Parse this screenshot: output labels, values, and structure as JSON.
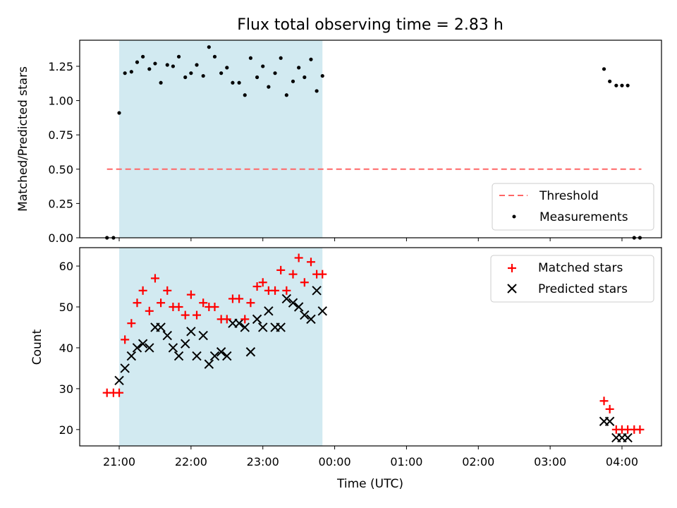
{
  "figure": {
    "title": "Flux total observing time = 2.83 h"
  },
  "chart_data": [
    {
      "type": "scatter",
      "panel": "top",
      "ylabel": "Matched/Predicted stars",
      "xlabel": "",
      "xlim": [
        -0.55,
        7.55
      ],
      "ylim": [
        0.0,
        1.44
      ],
      "yticks": [
        0.0,
        0.25,
        0.5,
        0.75,
        1.0,
        1.25
      ],
      "ytick_labels": [
        "0.00",
        "0.25",
        "0.50",
        "0.75",
        "1.00",
        "1.25"
      ],
      "shaded_region": {
        "x": [
          0.0,
          2.83
        ],
        "color": "#add8e6"
      },
      "threshold": {
        "name": "Threshold",
        "y": 0.5,
        "x": [
          -0.17,
          7.27
        ],
        "color": "#ff6666",
        "style": "dashed"
      },
      "legend": {
        "placement": "lower right",
        "entries": [
          "Threshold",
          "Measurements"
        ]
      },
      "series": [
        {
          "name": "Measurements",
          "marker": "dot",
          "color": "#000000",
          "points": [
            [
              -0.17,
              0.0
            ],
            [
              -0.08,
              0.0
            ],
            [
              0.0,
              0.91
            ],
            [
              0.08,
              1.2
            ],
            [
              0.17,
              1.21
            ],
            [
              0.25,
              1.28
            ],
            [
              0.33,
              1.32
            ],
            [
              0.42,
              1.23
            ],
            [
              0.5,
              1.27
            ],
            [
              0.58,
              1.13
            ],
            [
              0.67,
              1.26
            ],
            [
              0.75,
              1.25
            ],
            [
              0.83,
              1.32
            ],
            [
              0.92,
              1.17
            ],
            [
              1.0,
              1.2
            ],
            [
              1.08,
              1.26
            ],
            [
              1.17,
              1.18
            ],
            [
              1.25,
              1.39
            ],
            [
              1.33,
              1.32
            ],
            [
              1.42,
              1.2
            ],
            [
              1.5,
              1.24
            ],
            [
              1.58,
              1.13
            ],
            [
              1.67,
              1.13
            ],
            [
              1.75,
              1.04
            ],
            [
              1.83,
              1.31
            ],
            [
              1.92,
              1.17
            ],
            [
              2.0,
              1.25
            ],
            [
              2.08,
              1.1
            ],
            [
              2.17,
              1.2
            ],
            [
              2.25,
              1.31
            ],
            [
              2.33,
              1.04
            ],
            [
              2.42,
              1.14
            ],
            [
              2.5,
              1.24
            ],
            [
              2.58,
              1.17
            ],
            [
              2.67,
              1.3
            ],
            [
              2.75,
              1.07
            ],
            [
              2.83,
              1.18
            ],
            [
              6.75,
              1.23
            ],
            [
              6.83,
              1.14
            ],
            [
              6.92,
              1.11
            ],
            [
              7.0,
              1.11
            ],
            [
              7.08,
              1.11
            ],
            [
              7.17,
              0.0
            ],
            [
              7.25,
              0.0
            ]
          ]
        }
      ]
    },
    {
      "type": "scatter",
      "panel": "bottom",
      "xlabel": "Time (UTC)",
      "ylabel": "Count",
      "xlim": [
        -0.55,
        7.55
      ],
      "ylim": [
        16,
        64.5
      ],
      "yticks": [
        20,
        30,
        40,
        50,
        60
      ],
      "ytick_labels": [
        "20",
        "30",
        "40",
        "50",
        "60"
      ],
      "xticks": [
        0,
        1,
        2,
        3,
        4,
        5,
        6,
        7
      ],
      "xtick_labels": [
        "21:00",
        "22:00",
        "23:00",
        "00:00",
        "01:00",
        "02:00",
        "03:00",
        "04:00"
      ],
      "shaded_region": {
        "x": [
          0.0,
          2.83
        ],
        "color": "#add8e6"
      },
      "legend": {
        "placement": "upper right",
        "entries": [
          "Matched stars",
          "Predicted stars"
        ]
      },
      "series": [
        {
          "name": "Matched stars",
          "marker": "plus",
          "color": "#ff0000",
          "points": [
            [
              -0.17,
              29
            ],
            [
              -0.08,
              29
            ],
            [
              0.0,
              29
            ],
            [
              0.08,
              42
            ],
            [
              0.17,
              46
            ],
            [
              0.25,
              51
            ],
            [
              0.33,
              54
            ],
            [
              0.42,
              49
            ],
            [
              0.5,
              57
            ],
            [
              0.58,
              51
            ],
            [
              0.67,
              54
            ],
            [
              0.75,
              50
            ],
            [
              0.83,
              50
            ],
            [
              0.92,
              48
            ],
            [
              1.0,
              53
            ],
            [
              1.08,
              48
            ],
            [
              1.17,
              51
            ],
            [
              1.25,
              50
            ],
            [
              1.33,
              50
            ],
            [
              1.42,
              47
            ],
            [
              1.5,
              47
            ],
            [
              1.58,
              52
            ],
            [
              1.67,
              52
            ],
            [
              1.75,
              47
            ],
            [
              1.83,
              51
            ],
            [
              1.92,
              55
            ],
            [
              2.0,
              56
            ],
            [
              2.08,
              54
            ],
            [
              2.17,
              54
            ],
            [
              2.25,
              59
            ],
            [
              2.33,
              54
            ],
            [
              2.42,
              58
            ],
            [
              2.5,
              62
            ],
            [
              2.58,
              56
            ],
            [
              2.67,
              61
            ],
            [
              2.75,
              58
            ],
            [
              2.83,
              58
            ],
            [
              6.75,
              27
            ],
            [
              6.83,
              25
            ],
            [
              6.92,
              20
            ],
            [
              7.0,
              20
            ],
            [
              7.08,
              20
            ],
            [
              7.17,
              20
            ],
            [
              7.25,
              20
            ]
          ]
        },
        {
          "name": "Predicted stars",
          "marker": "x",
          "color": "#000000",
          "points": [
            [
              0.0,
              32
            ],
            [
              0.08,
              35
            ],
            [
              0.17,
              38
            ],
            [
              0.25,
              40
            ],
            [
              0.33,
              41
            ],
            [
              0.42,
              40
            ],
            [
              0.5,
              45
            ],
            [
              0.58,
              45
            ],
            [
              0.67,
              43
            ],
            [
              0.75,
              40
            ],
            [
              0.83,
              38
            ],
            [
              0.92,
              41
            ],
            [
              1.0,
              44
            ],
            [
              1.08,
              38
            ],
            [
              1.17,
              43
            ],
            [
              1.25,
              36
            ],
            [
              1.33,
              38
            ],
            [
              1.42,
              39
            ],
            [
              1.5,
              38
            ],
            [
              1.58,
              46
            ],
            [
              1.67,
              46
            ],
            [
              1.75,
              45
            ],
            [
              1.83,
              39
            ],
            [
              1.92,
              47
            ],
            [
              2.0,
              45
            ],
            [
              2.08,
              49
            ],
            [
              2.17,
              45
            ],
            [
              2.25,
              45
            ],
            [
              2.33,
              52
            ],
            [
              2.42,
              51
            ],
            [
              2.5,
              50
            ],
            [
              2.58,
              48
            ],
            [
              2.67,
              47
            ],
            [
              2.75,
              54
            ],
            [
              2.83,
              49
            ],
            [
              6.75,
              22
            ],
            [
              6.83,
              22
            ],
            [
              6.92,
              18
            ],
            [
              7.0,
              18
            ],
            [
              7.08,
              18
            ]
          ]
        }
      ]
    }
  ]
}
